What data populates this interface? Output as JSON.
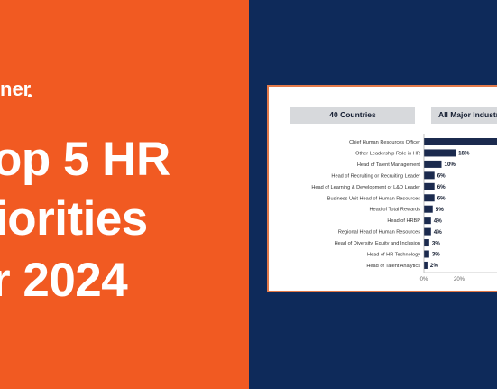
{
  "brand": {
    "visible_text": "ner"
  },
  "headline": {
    "line1": "op 5 HR",
    "line2": "iorities",
    "line3": "r 2024"
  },
  "chart_data": {
    "type": "bar",
    "orientation": "horizontal",
    "panel_headers": [
      "40 Countries",
      "All Major Industri"
    ],
    "categories": [
      "Chief Human Resources Officer",
      "Other Leadership Role in HR",
      "Head of Talent Management",
      "Head of Recruiting or Recruiting Leader",
      "Head of Learning & Development or L&D Leader",
      "Business Unit Head of Human Resources",
      "Head of Total Rewards",
      "Head of HRBP",
      "Regional Head of Human Resources",
      "Head of Diversity, Equity and Inclusion",
      "Head of HR Technology",
      "Head of Talent Analytics"
    ],
    "values": [
      null,
      18,
      10,
      6,
      6,
      6,
      5,
      4,
      4,
      3,
      3,
      2
    ],
    "value_labels": [
      "",
      "18%",
      "10%",
      "6%",
      "6%",
      "6%",
      "5%",
      "4%",
      "4%",
      "3%",
      "3%",
      "2%"
    ],
    "x_ticks": [
      "0%",
      "20%"
    ],
    "bar_color": "#1b2a4e"
  },
  "colors": {
    "orange": "#f15a22",
    "navy": "#0e2a5a",
    "card_border": "#e37a4a"
  }
}
